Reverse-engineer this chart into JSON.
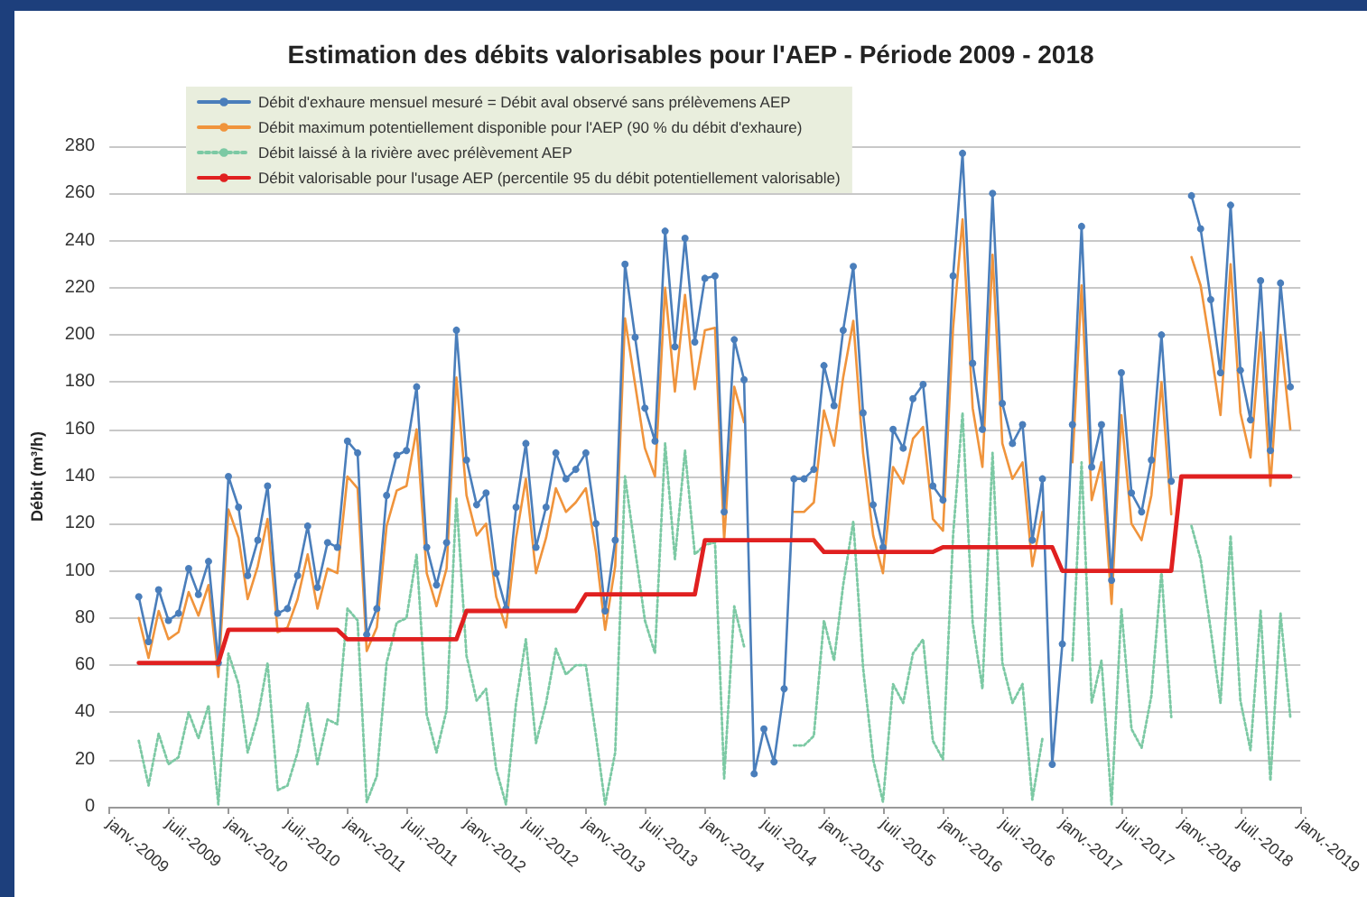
{
  "chart_data": {
    "type": "line",
    "title": "Estimation des débits valorisables pour l'AEP - Période 2009 - 2018",
    "ylabel": "Débit (m³/h)",
    "x": [
      "2009-04",
      "2009-05",
      "2009-06",
      "2009-07",
      "2009-08",
      "2009-09",
      "2009-10",
      "2009-11",
      "2009-12",
      "2010-01",
      "2010-02",
      "2010-03",
      "2010-04",
      "2010-05",
      "2010-06",
      "2010-07",
      "2010-08",
      "2010-09",
      "2010-10",
      "2010-11",
      "2010-12",
      "2011-01",
      "2011-02",
      "2011-03",
      "2011-04",
      "2011-05",
      "2011-06",
      "2011-07",
      "2011-08",
      "2011-09",
      "2011-10",
      "2011-11",
      "2011-12",
      "2012-01",
      "2012-02",
      "2012-03",
      "2012-04",
      "2012-05",
      "2012-06",
      "2012-07",
      "2012-08",
      "2012-09",
      "2012-10",
      "2012-11",
      "2012-12",
      "2013-01",
      "2013-02",
      "2013-03",
      "2013-04",
      "2013-05",
      "2013-06",
      "2013-07",
      "2013-08",
      "2013-09",
      "2013-10",
      "2013-11",
      "2013-12",
      "2014-01",
      "2014-02",
      "2014-03",
      "2014-04",
      "2014-05",
      "2014-06",
      "2014-07",
      "2014-08",
      "2014-09",
      "2014-10",
      "2014-11",
      "2014-12",
      "2015-01",
      "2015-02",
      "2015-03",
      "2015-04",
      "2015-05",
      "2015-06",
      "2015-07",
      "2015-08",
      "2015-09",
      "2015-10",
      "2015-11",
      "2015-12",
      "2016-01",
      "2016-02",
      "2016-03",
      "2016-04",
      "2016-05",
      "2016-06",
      "2016-07",
      "2016-08",
      "2016-09",
      "2016-10",
      "2016-11",
      "2016-12",
      "2017-01",
      "2017-02",
      "2017-03",
      "2017-04",
      "2017-05",
      "2017-06",
      "2017-07",
      "2017-08",
      "2017-09",
      "2017-10",
      "2017-11",
      "2017-12",
      "2018-01",
      "2018-02",
      "2018-03",
      "2018-04",
      "2018-05",
      "2018-06",
      "2018-07",
      "2018-08",
      "2018-09",
      "2018-10",
      "2018-11",
      "2018-12"
    ],
    "series": [
      {
        "name": "Débit d'exhaure mensuel mesuré = Débit aval observé sans prélèvemens AEP",
        "color": "#4a7ebb",
        "marker": "circle",
        "values": [
          89,
          70,
          92,
          79,
          82,
          101,
          90,
          104,
          61,
          140,
          127,
          98,
          113,
          136,
          82,
          84,
          98,
          119,
          93,
          112,
          110,
          155,
          150,
          73,
          84,
          132,
          149,
          151,
          178,
          110,
          94,
          112,
          202,
          147,
          128,
          133,
          99,
          84,
          127,
          154,
          110,
          127,
          150,
          139,
          143,
          150,
          120,
          83,
          113,
          230,
          199,
          169,
          155,
          244,
          195,
          241,
          197,
          224,
          225,
          125,
          198,
          181,
          14,
          33,
          19,
          50,
          139,
          139,
          143,
          187,
          170,
          202,
          229,
          167,
          128,
          110,
          160,
          152,
          173,
          179,
          136,
          130,
          225,
          277,
          188,
          160,
          260,
          171,
          154,
          162,
          113,
          139,
          18,
          69,
          162,
          246,
          144,
          162,
          96,
          184,
          133,
          125,
          147,
          200,
          138,
          null,
          259,
          245,
          215,
          184,
          255,
          185,
          164,
          223,
          151,
          222,
          178
        ]
      },
      {
        "name": "Débit maximum potentiellement disponible pour l'AEP (90 % du débit d'exhaure)",
        "color": "#f0943c",
        "marker": "none",
        "values": [
          80,
          63,
          83,
          71,
          74,
          91,
          81,
          94,
          55,
          126,
          114,
          88,
          102,
          122,
          74,
          76,
          88,
          107,
          84,
          101,
          99,
          140,
          135,
          66,
          76,
          119,
          134,
          136,
          160,
          99,
          85,
          101,
          182,
          132,
          115,
          120,
          89,
          76,
          114,
          139,
          99,
          114,
          135,
          125,
          129,
          135,
          108,
          75,
          102,
          207,
          179,
          152,
          140,
          220,
          176,
          217,
          177,
          202,
          203,
          113,
          178,
          163,
          null,
          null,
          null,
          null,
          125,
          125,
          129,
          168,
          153,
          182,
          206,
          150,
          115,
          99,
          144,
          137,
          156,
          161,
          122,
          117,
          203,
          249,
          169,
          144,
          234,
          154,
          139,
          146,
          102,
          125,
          null,
          null,
          146,
          221,
          130,
          146,
          86,
          166,
          120,
          113,
          132,
          180,
          124,
          null,
          233,
          221,
          194,
          166,
          230,
          167,
          148,
          201,
          136,
          200,
          160
        ]
      },
      {
        "name": "Débit laissé à la rivière avec prélèvement AEP",
        "color": "#7cc9a4",
        "marker": "none",
        "line_style": "dotted",
        "values": [
          28,
          9,
          31,
          18,
          21,
          40,
          29,
          43,
          1,
          65,
          52,
          23,
          38,
          61,
          7,
          9,
          23,
          44,
          18,
          37,
          35,
          84,
          79,
          2,
          13,
          61,
          78,
          80,
          107,
          39,
          23,
          41,
          131,
          64,
          45,
          50,
          16,
          1,
          44,
          71,
          27,
          44,
          67,
          56,
          60,
          60,
          30,
          1,
          23,
          140,
          109,
          79,
          65,
          154,
          105,
          151,
          107,
          111,
          112,
          12,
          85,
          68,
          null,
          null,
          null,
          null,
          26,
          26,
          30,
          79,
          62,
          94,
          121,
          59,
          20,
          2,
          52,
          44,
          65,
          71,
          28,
          20,
          115,
          167,
          78,
          50,
          150,
          61,
          44,
          52,
          3,
          29,
          null,
          null,
          62,
          146,
          44,
          62,
          1,
          84,
          33,
          25,
          47,
          100,
          38,
          null,
          119,
          105,
          75,
          44,
          115,
          45,
          24,
          83,
          11,
          82,
          38
        ]
      },
      {
        "name": "Débit valorisable pour l'usage AEP (percentile 95 du débit potentiellement valorisable)",
        "color": "#e02020",
        "marker": "none",
        "values": [
          61,
          61,
          61,
          61,
          61,
          61,
          61,
          61,
          61,
          75,
          75,
          75,
          75,
          75,
          75,
          75,
          75,
          75,
          75,
          75,
          75,
          71,
          71,
          71,
          71,
          71,
          71,
          71,
          71,
          71,
          71,
          71,
          71,
          83,
          83,
          83,
          83,
          83,
          83,
          83,
          83,
          83,
          83,
          83,
          83,
          90,
          90,
          90,
          90,
          90,
          90,
          90,
          90,
          90,
          90,
          90,
          90,
          113,
          113,
          113,
          113,
          113,
          113,
          113,
          113,
          113,
          113,
          113,
          113,
          108,
          108,
          108,
          108,
          108,
          108,
          108,
          108,
          108,
          108,
          108,
          108,
          110,
          110,
          110,
          110,
          110,
          110,
          110,
          110,
          110,
          110,
          110,
          110,
          100,
          100,
          100,
          100,
          100,
          100,
          100,
          100,
          100,
          100,
          100,
          100,
          140,
          140,
          140,
          140,
          140,
          140,
          140,
          140,
          140,
          140,
          140,
          140
        ]
      }
    ],
    "xlim": [
      "2009-01",
      "2019-01"
    ],
    "xticks": [
      {
        "value": "2009-01",
        "label": "janv.-2009"
      },
      {
        "value": "2009-07",
        "label": "juil.-2009"
      },
      {
        "value": "2010-01",
        "label": "janv.-2010"
      },
      {
        "value": "2010-07",
        "label": "juil.-2010"
      },
      {
        "value": "2011-01",
        "label": "janv.-2011"
      },
      {
        "value": "2011-07",
        "label": "juil.-2011"
      },
      {
        "value": "2012-01",
        "label": "janv.-2012"
      },
      {
        "value": "2012-07",
        "label": "juil.-2012"
      },
      {
        "value": "2013-01",
        "label": "janv.-2013"
      },
      {
        "value": "2013-07",
        "label": "juil.-2013"
      },
      {
        "value": "2014-01",
        "label": "janv.-2014"
      },
      {
        "value": "2014-07",
        "label": "juil.-2014"
      },
      {
        "value": "2015-01",
        "label": "janv.-2015"
      },
      {
        "value": "2015-07",
        "label": "juil.-2015"
      },
      {
        "value": "2016-01",
        "label": "janv.-2016"
      },
      {
        "value": "2016-07",
        "label": "juil.-2016"
      },
      {
        "value": "2017-01",
        "label": "janv.-2017"
      },
      {
        "value": "2017-07",
        "label": "juil.-2017"
      },
      {
        "value": "2018-01",
        "label": "janv.-2018"
      },
      {
        "value": "2018-07",
        "label": "juil.-2018"
      },
      {
        "value": "2019-01",
        "label": "janv.-2019"
      }
    ],
    "ylim": [
      0,
      280
    ],
    "yticks": [
      0,
      20,
      40,
      60,
      80,
      100,
      120,
      140,
      160,
      180,
      200,
      220,
      240,
      260,
      280
    ],
    "grid": "y",
    "legend": "top left"
  }
}
